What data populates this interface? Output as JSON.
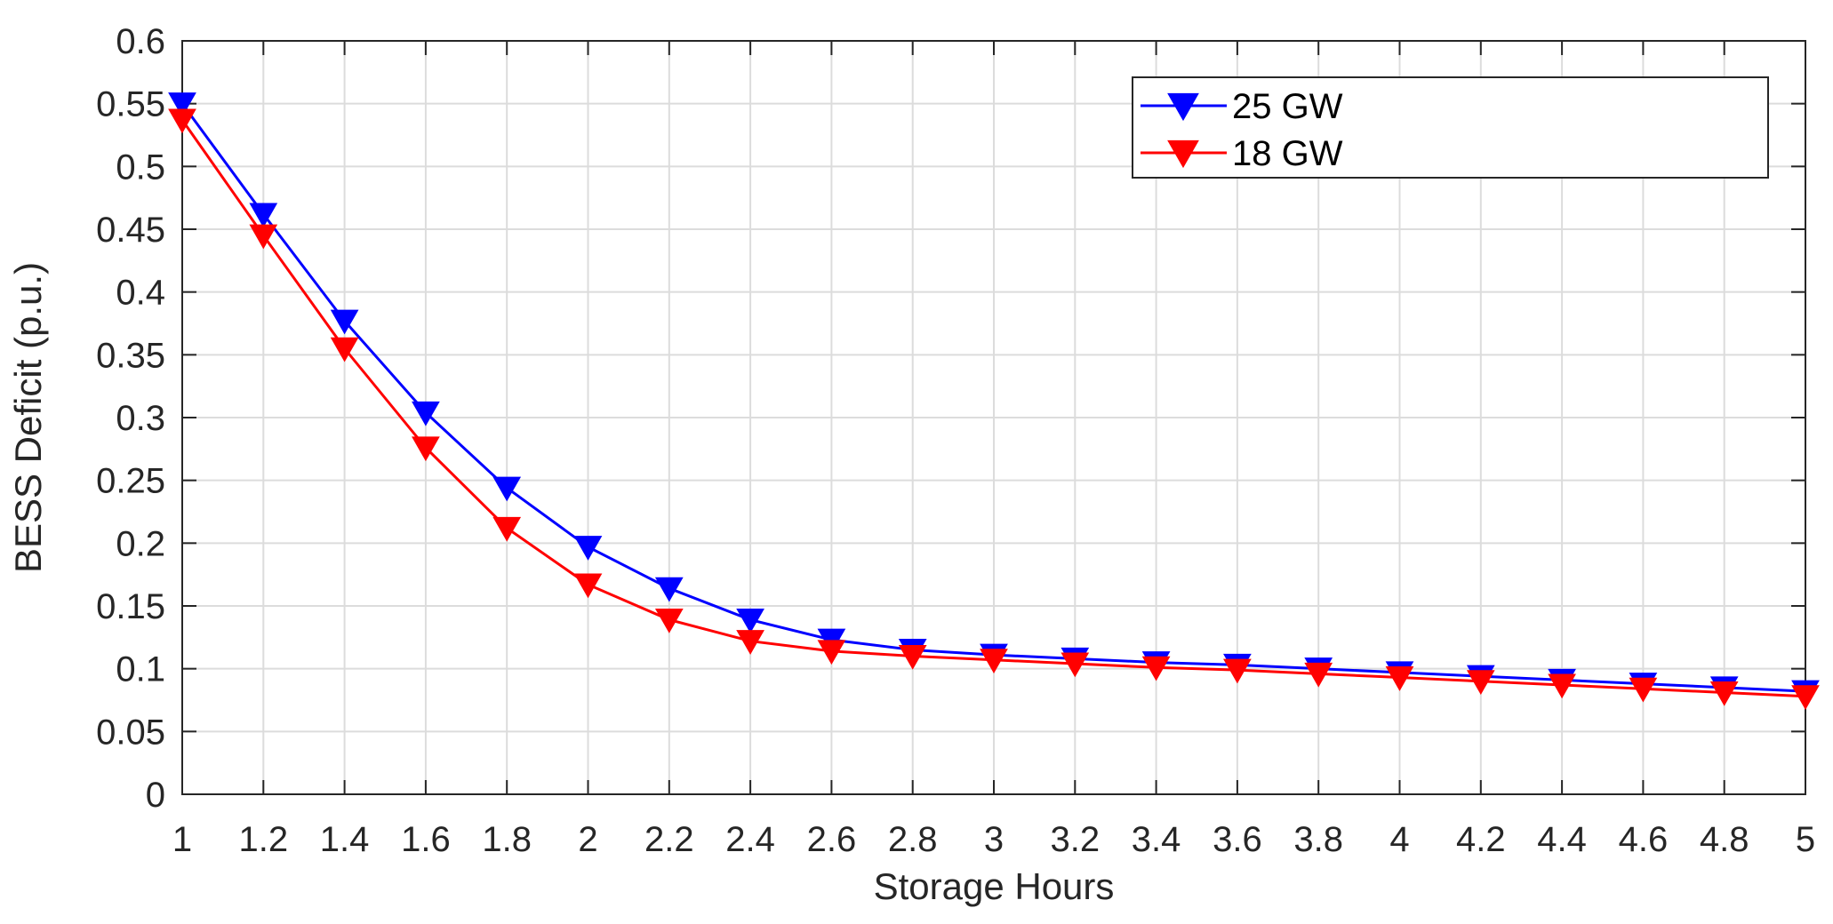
{
  "chart_data": {
    "type": "line",
    "title": "",
    "xlabel": "Storage Hours",
    "ylabel": "BESS Deficit (p.u.)",
    "xlim": [
      1,
      5
    ],
    "ylim": [
      0,
      0.6
    ],
    "grid": true,
    "legend_position": "top-right",
    "x_ticks": [
      "1",
      "1.2",
      "1.4",
      "1.6",
      "1.8",
      "2",
      "2.2",
      "2.4",
      "2.6",
      "2.8",
      "3",
      "3.2",
      "3.4",
      "3.6",
      "3.8",
      "4",
      "4.2",
      "4.4",
      "4.6",
      "4.8",
      "5"
    ],
    "y_ticks": [
      "0",
      "0.05",
      "0.1",
      "0.15",
      "0.2",
      "0.25",
      "0.3",
      "0.35",
      "0.4",
      "0.45",
      "0.5",
      "0.55",
      "0.6"
    ],
    "x": [
      1,
      1.2,
      1.4,
      1.6,
      1.8,
      2,
      2.2,
      2.4,
      2.6,
      2.8,
      3,
      3.2,
      3.4,
      3.6,
      3.8,
      4,
      4.2,
      4.4,
      4.6,
      4.8,
      5
    ],
    "series": [
      {
        "name": "25 GW",
        "color": "#0000ff",
        "marker": "triangle-down",
        "values": [
          0.55,
          0.462,
          0.377,
          0.304,
          0.244,
          0.197,
          0.164,
          0.139,
          0.123,
          0.115,
          0.111,
          0.108,
          0.105,
          0.103,
          0.1,
          0.097,
          0.094,
          0.091,
          0.088,
          0.085,
          0.082
        ]
      },
      {
        "name": "18 GW",
        "color": "#ff0000",
        "marker": "triangle-down",
        "values": [
          0.537,
          0.445,
          0.355,
          0.276,
          0.212,
          0.167,
          0.139,
          0.122,
          0.114,
          0.11,
          0.107,
          0.104,
          0.101,
          0.099,
          0.096,
          0.093,
          0.09,
          0.087,
          0.084,
          0.081,
          0.078
        ]
      }
    ]
  }
}
